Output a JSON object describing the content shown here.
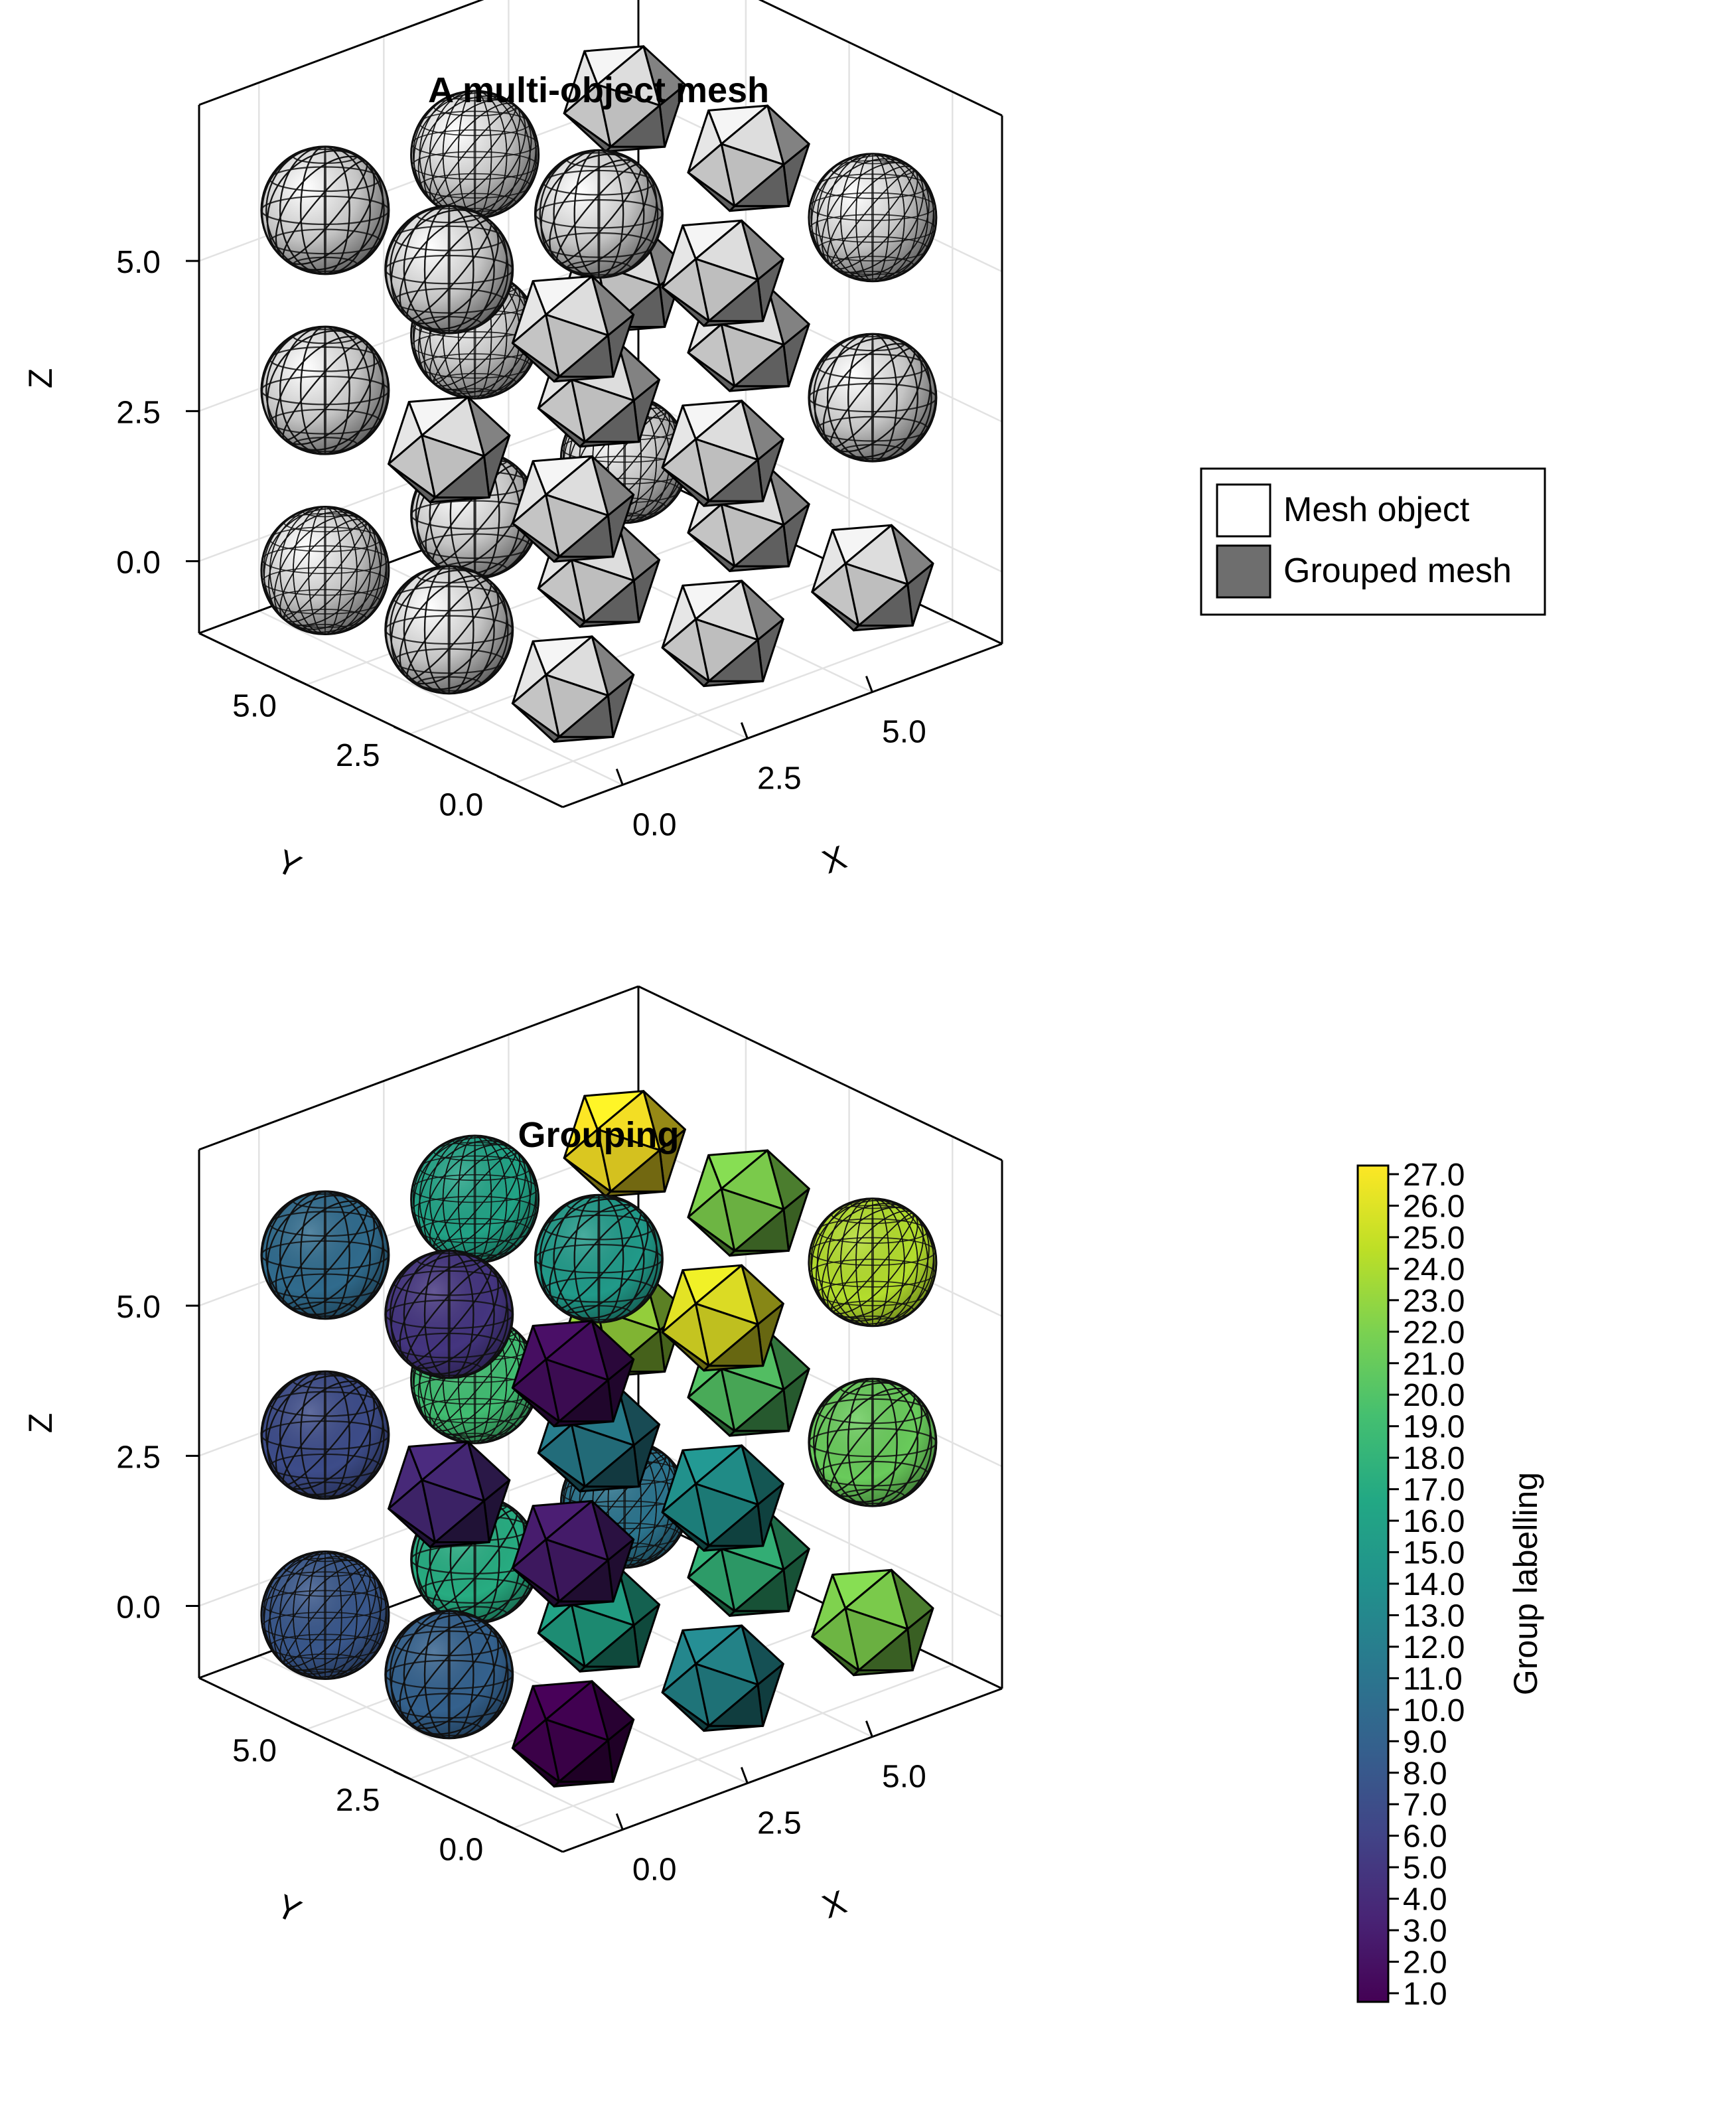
{
  "chart_data": [
    {
      "type": "mesh3d",
      "title": "A multi-object mesh",
      "xlabel": "X",
      "ylabel": "Y",
      "zlabel": "Z",
      "xticks": [
        "0.0",
        "2.5",
        "5.0"
      ],
      "yticks": [
        "0.0",
        "2.5",
        "5.0"
      ],
      "zticks": [
        "0.0",
        "2.5",
        "5.0"
      ],
      "xlim": [
        -1,
        7
      ],
      "ylim": [
        -1,
        7
      ],
      "zlim": [
        -1,
        7
      ],
      "grid": true,
      "legend": {
        "position": "right",
        "entries": [
          {
            "label": "Mesh object",
            "color": "#ffffff"
          },
          {
            "label": "Grouped mesh",
            "color": "#6e6e6e"
          }
        ]
      },
      "object_color": "#bdbdbd",
      "objects": [
        {
          "x": 0,
          "y": 0,
          "z": 0,
          "shape": "icosahedron"
        },
        {
          "x": 3,
          "y": 0,
          "z": 0,
          "shape": "icosahedron"
        },
        {
          "x": 6,
          "y": 0,
          "z": 0,
          "shape": "icosahedron"
        },
        {
          "x": 0,
          "y": 3,
          "z": 0,
          "shape": "sphere-coarse"
        },
        {
          "x": 3,
          "y": 3,
          "z": 0,
          "shape": "icosahedron"
        },
        {
          "x": 6,
          "y": 3,
          "z": 0,
          "shape": "icosahedron"
        },
        {
          "x": 0,
          "y": 6,
          "z": 0,
          "shape": "sphere-fine"
        },
        {
          "x": 3,
          "y": 6,
          "z": 0,
          "shape": "sphere-coarse"
        },
        {
          "x": 6,
          "y": 6,
          "z": 0,
          "shape": "sphere-fine"
        },
        {
          "x": 0,
          "y": 0,
          "z": 3,
          "shape": "icosahedron"
        },
        {
          "x": 3,
          "y": 0,
          "z": 3,
          "shape": "icosahedron"
        },
        {
          "x": 6,
          "y": 0,
          "z": 3,
          "shape": "sphere-coarse"
        },
        {
          "x": 0,
          "y": 3,
          "z": 3,
          "shape": "icosahedron"
        },
        {
          "x": 3,
          "y": 3,
          "z": 3,
          "shape": "icosahedron"
        },
        {
          "x": 6,
          "y": 3,
          "z": 3,
          "shape": "icosahedron"
        },
        {
          "x": 0,
          "y": 6,
          "z": 3,
          "shape": "sphere-coarse"
        },
        {
          "x": 3,
          "y": 6,
          "z": 3,
          "shape": "sphere-fine"
        },
        {
          "x": 6,
          "y": 6,
          "z": 3,
          "shape": "icosahedron"
        },
        {
          "x": 0,
          "y": 0,
          "z": 6,
          "shape": "icosahedron"
        },
        {
          "x": 3,
          "y": 0,
          "z": 6,
          "shape": "icosahedron"
        },
        {
          "x": 6,
          "y": 0,
          "z": 6,
          "shape": "sphere-fine"
        },
        {
          "x": 0,
          "y": 3,
          "z": 6,
          "shape": "sphere-coarse"
        },
        {
          "x": 3,
          "y": 3,
          "z": 6,
          "shape": "sphere-coarse"
        },
        {
          "x": 6,
          "y": 3,
          "z": 6,
          "shape": "icosahedron"
        },
        {
          "x": 0,
          "y": 6,
          "z": 6,
          "shape": "sphere-coarse"
        },
        {
          "x": 3,
          "y": 6,
          "z": 6,
          "shape": "sphere-fine"
        },
        {
          "x": 6,
          "y": 6,
          "z": 6,
          "shape": "icosahedron"
        }
      ]
    },
    {
      "type": "mesh3d",
      "title": "Grouping",
      "xlabel": "X",
      "ylabel": "Y",
      "zlabel": "Z",
      "xticks": [
        "0.0",
        "2.5",
        "5.0"
      ],
      "yticks": [
        "0.0",
        "2.5",
        "5.0"
      ],
      "zticks": [
        "0.0",
        "2.5",
        "5.0"
      ],
      "xlim": [
        -1,
        7
      ],
      "ylim": [
        -1,
        7
      ],
      "zlim": [
        -1,
        7
      ],
      "grid": true,
      "colormap": "viridis",
      "colorbar": {
        "label": "Group labelling",
        "range": [
          1,
          27
        ],
        "ticks": [
          "1.0",
          "2.0",
          "3.0",
          "4.0",
          "5.0",
          "6.0",
          "7.0",
          "8.0",
          "9.0",
          "10.0",
          "11.0",
          "12.0",
          "13.0",
          "14.0",
          "15.0",
          "16.0",
          "17.0",
          "18.0",
          "19.0",
          "20.0",
          "21.0",
          "22.0",
          "23.0",
          "24.0",
          "25.0",
          "26.0",
          "27.0"
        ]
      },
      "group_values": [
        1,
        13,
        22,
        9,
        16,
        18,
        8,
        17,
        11,
        3,
        14,
        21,
        4,
        12,
        20,
        7,
        19,
        23,
        2,
        26,
        24,
        5,
        15,
        22,
        10,
        16,
        27
      ]
    }
  ]
}
